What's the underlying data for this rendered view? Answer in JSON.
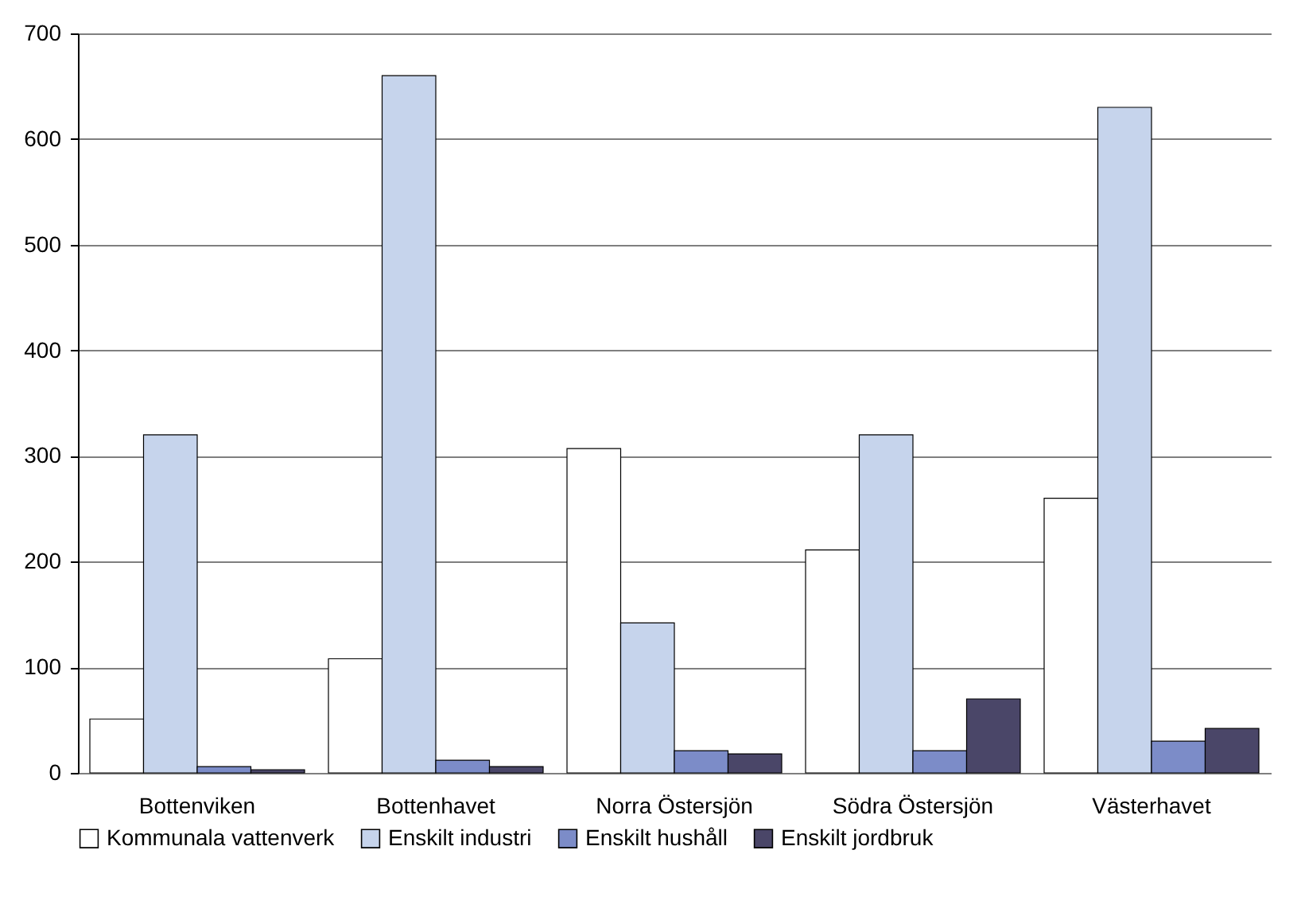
{
  "chart_data": {
    "type": "bar",
    "categories": [
      "Bottenviken",
      "Bottenhavet",
      "Norra Östersjön",
      "Södra Östersjön",
      "Västerhavet"
    ],
    "series": [
      {
        "name": "Kommunala vattenverk",
        "color": "#ffffff",
        "values": [
          51,
          108,
          307,
          211,
          260
        ]
      },
      {
        "name": "Enskilt industri",
        "color": "#c6d4ec",
        "values": [
          320,
          660,
          142,
          320,
          630
        ]
      },
      {
        "name": "Enskilt hushåll",
        "color": "#7c8cc8",
        "values": [
          6,
          12,
          21,
          21,
          30
        ]
      },
      {
        "name": "Enskilt jordbruk",
        "color": "#4a4668",
        "values": [
          3,
          6,
          18,
          70,
          42
        ]
      }
    ],
    "ylim": [
      0,
      700
    ],
    "yticks": [
      0,
      100,
      200,
      300,
      400,
      500,
      600,
      700
    ],
    "grid": "y",
    "legend": "bottom"
  }
}
